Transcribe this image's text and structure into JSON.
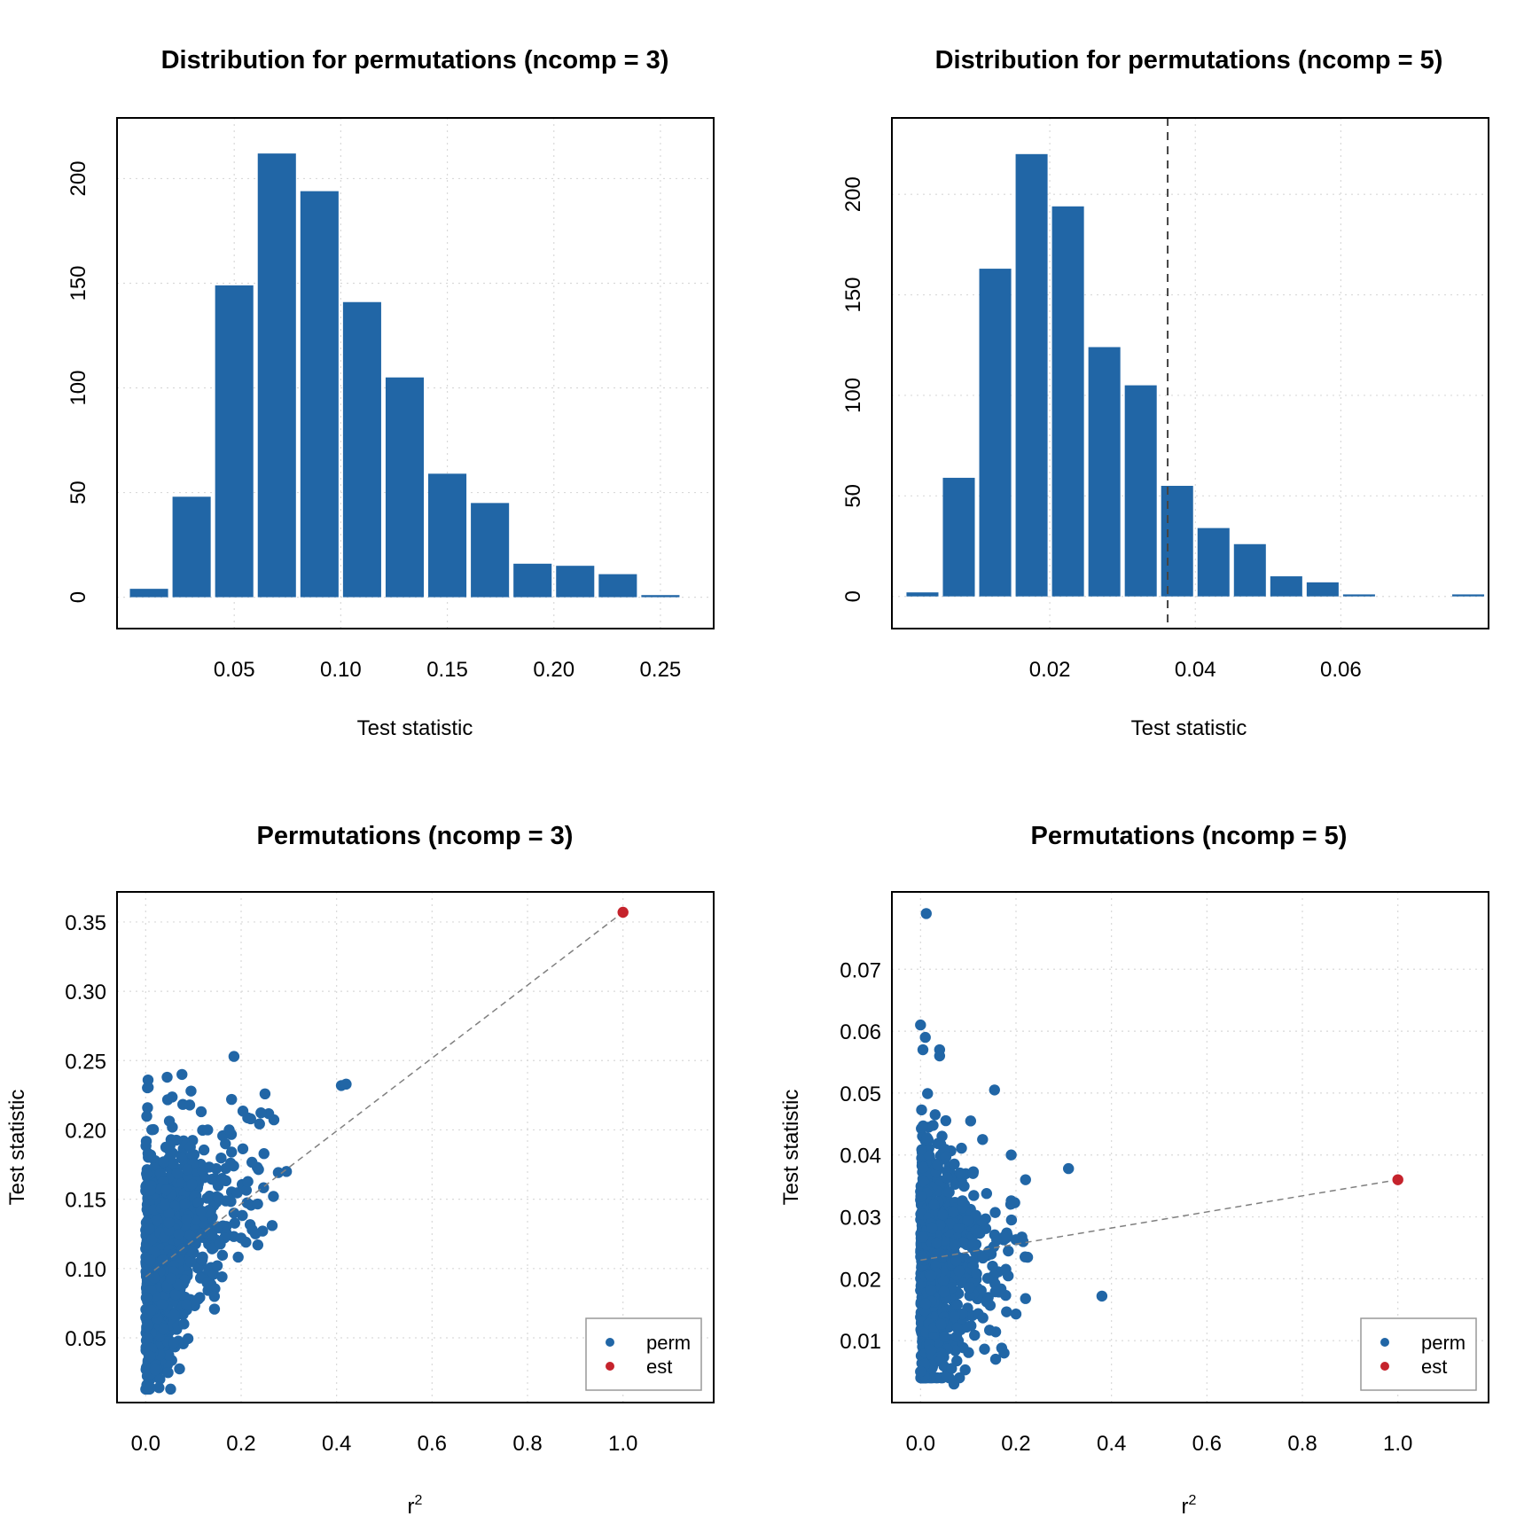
{
  "colors": {
    "perm": "#2166A6",
    "est": "#C5232C",
    "grid": "#d9d9d9",
    "ref_line": "#808080",
    "axis": "#000000"
  },
  "chart_data": [
    {
      "id": "hist3",
      "type": "bar",
      "title": "Distribution for permutations (ncomp = 3)",
      "xlabel": "Test statistic",
      "ylabel": "",
      "xlim": [
        -0.005,
        0.275
      ],
      "ylim": [
        -15,
        229
      ],
      "xticks": [
        0.05,
        0.1,
        0.15,
        0.2,
        0.25
      ],
      "xtick_labels": [
        "0.05",
        "0.10",
        "0.15",
        "0.20",
        "0.25"
      ],
      "yticks": [
        0,
        50,
        100,
        150,
        200
      ],
      "ytick_labels": [
        "0",
        "50",
        "100",
        "150",
        "200"
      ],
      "bin_width": 0.02,
      "bins": [
        {
          "center": 0.01,
          "count": 4
        },
        {
          "center": 0.03,
          "count": 48
        },
        {
          "center": 0.05,
          "count": 149
        },
        {
          "center": 0.07,
          "count": 212
        },
        {
          "center": 0.09,
          "count": 194
        },
        {
          "center": 0.11,
          "count": 141
        },
        {
          "center": 0.13,
          "count": 105
        },
        {
          "center": 0.15,
          "count": 59
        },
        {
          "center": 0.17,
          "count": 45
        },
        {
          "center": 0.19,
          "count": 16
        },
        {
          "center": 0.21,
          "count": 15
        },
        {
          "center": 0.23,
          "count": 11
        },
        {
          "center": 0.25,
          "count": 1
        }
      ],
      "vline": null,
      "grid": true
    },
    {
      "id": "hist5",
      "type": "bar",
      "title": "Distribution for permutations (ncomp = 5)",
      "xlabel": "Test statistic",
      "ylabel": "",
      "xlim": [
        -0.0017,
        0.0803
      ],
      "ylim": [
        -16,
        238
      ],
      "xticks": [
        0.02,
        0.04,
        0.06
      ],
      "xtick_labels": [
        "0.02",
        "0.04",
        "0.06"
      ],
      "yticks": [
        0,
        50,
        100,
        150,
        200
      ],
      "ytick_labels": [
        "0",
        "50",
        "100",
        "150",
        "200"
      ],
      "bin_width": 0.005,
      "bins": [
        {
          "center": 0.0025,
          "count": 2
        },
        {
          "center": 0.0075,
          "count": 59
        },
        {
          "center": 0.0125,
          "count": 163
        },
        {
          "center": 0.0175,
          "count": 220
        },
        {
          "center": 0.0225,
          "count": 194
        },
        {
          "center": 0.0275,
          "count": 124
        },
        {
          "center": 0.0325,
          "count": 105
        },
        {
          "center": 0.0375,
          "count": 55
        },
        {
          "center": 0.0425,
          "count": 34
        },
        {
          "center": 0.0475,
          "count": 26
        },
        {
          "center": 0.0525,
          "count": 10
        },
        {
          "center": 0.0575,
          "count": 7
        },
        {
          "center": 0.0625,
          "count": 1
        },
        {
          "center": 0.0675,
          "count": 0
        },
        {
          "center": 0.0725,
          "count": 0
        },
        {
          "center": 0.0775,
          "count": 1
        }
      ],
      "vline": 0.0362,
      "grid": true
    },
    {
      "id": "scatter3",
      "type": "scatter",
      "title": "Permutations (ncomp = 3)",
      "xlabel": "r",
      "xlabel_sup": "2",
      "ylabel": "Test statistic",
      "xlim": [
        -0.06,
        1.19
      ],
      "ylim": [
        0.0033,
        0.3717
      ],
      "xticks": [
        0.0,
        0.2,
        0.4,
        0.6,
        0.8,
        1.0
      ],
      "xtick_labels": [
        "0.0",
        "0.2",
        "0.4",
        "0.6",
        "0.8",
        "1.0"
      ],
      "yticks": [
        0.05,
        0.1,
        0.15,
        0.2,
        0.25,
        0.3,
        0.35
      ],
      "ytick_labels": [
        "0.05",
        "0.10",
        "0.15",
        "0.20",
        "0.25",
        "0.30",
        "0.35"
      ],
      "est": {
        "x": 1.0,
        "y": 0.357
      },
      "ref_line": {
        "x1": 0.0,
        "y1": 0.094,
        "x2": 1.0,
        "y2": 0.357
      },
      "hline": null,
      "legend": {
        "entries": [
          "perm",
          "est"
        ],
        "position": "bottom-right"
      },
      "cloud": {
        "n": 1000,
        "seed": 7,
        "y_mean": 0.095,
        "y_sd": 0.04,
        "y_min": 0.013,
        "y_max": 0.24,
        "x_scale": 0.055,
        "x_max": 0.3,
        "slope": 0.3
      },
      "points": [
        {
          "x": 0.41,
          "y": 0.232
        },
        {
          "x": 0.42,
          "y": 0.233
        },
        {
          "x": 0.185,
          "y": 0.253
        },
        {
          "x": 0.25,
          "y": 0.226
        },
        {
          "x": 0.22,
          "y": 0.208
        },
        {
          "x": 0.295,
          "y": 0.17
        },
        {
          "x": 0.265,
          "y": 0.131
        },
        {
          "x": 0.245,
          "y": 0.127
        },
        {
          "x": 0.23,
          "y": 0.125
        },
        {
          "x": 0.235,
          "y": 0.117
        },
        {
          "x": 0.21,
          "y": 0.119
        },
        {
          "x": 0.2,
          "y": 0.122
        },
        {
          "x": 0.18,
          "y": 0.222
        },
        {
          "x": 0.18,
          "y": 0.184
        },
        {
          "x": 0.185,
          "y": 0.14
        },
        {
          "x": 0.175,
          "y": 0.2
        },
        {
          "x": 0.13,
          "y": 0.2
        },
        {
          "x": 0.16,
          "y": 0.165
        },
        {
          "x": 0.16,
          "y": 0.094
        },
        {
          "x": 0.15,
          "y": 0.102
        },
        {
          "x": 0.095,
          "y": 0.228
        },
        {
          "x": 0.08,
          "y": 0.06
        },
        {
          "x": 0.045,
          "y": 0.238
        },
        {
          "x": 0.005,
          "y": 0.236
        },
        {
          "x": 0.004,
          "y": 0.216
        },
        {
          "x": 0.02,
          "y": 0.027
        },
        {
          "x": 0.01,
          "y": 0.014
        }
      ],
      "grid": true
    },
    {
      "id": "scatter5",
      "type": "scatter",
      "title": "Permutations (ncomp = 5)",
      "xlabel": "r",
      "xlabel_sup": "2",
      "ylabel": "Test statistic",
      "xlim": [
        -0.06,
        1.19
      ],
      "ylim": [
        0.0,
        0.0825
      ],
      "xticks": [
        0.0,
        0.2,
        0.4,
        0.6,
        0.8,
        1.0
      ],
      "xtick_labels": [
        "0.0",
        "0.2",
        "0.4",
        "0.6",
        "0.8",
        "1.0"
      ],
      "yticks": [
        0.01,
        0.02,
        0.03,
        0.04,
        0.05,
        0.06,
        0.07
      ],
      "ytick_labels": [
        "0.01",
        "0.02",
        "0.03",
        "0.04",
        "0.05",
        "0.06",
        "0.07"
      ],
      "est": {
        "x": 1.0,
        "y": 0.036
      },
      "ref_line": {
        "x1": 0.0,
        "y1": 0.023,
        "x2": 1.0,
        "y2": 0.036
      },
      "hline": 0.0,
      "legend": {
        "entries": [
          "perm",
          "est"
        ],
        "position": "bottom-right"
      },
      "cloud": {
        "n": 1000,
        "seed": 13,
        "y_mean": 0.023,
        "y_sd": 0.0095,
        "y_min": 0.004,
        "y_max": 0.05,
        "x_scale": 0.045,
        "x_max": 0.23,
        "slope": 0.0
      },
      "points": [
        {
          "x": 0.012,
          "y": 0.079
        },
        {
          "x": 0.0,
          "y": 0.061
        },
        {
          "x": 0.01,
          "y": 0.059
        },
        {
          "x": 0.04,
          "y": 0.057
        },
        {
          "x": 0.005,
          "y": 0.057
        },
        {
          "x": 0.04,
          "y": 0.056
        },
        {
          "x": 0.155,
          "y": 0.0505
        },
        {
          "x": 0.31,
          "y": 0.0378
        },
        {
          "x": 0.38,
          "y": 0.0172
        },
        {
          "x": 0.22,
          "y": 0.036
        },
        {
          "x": 0.19,
          "y": 0.04
        },
        {
          "x": 0.19,
          "y": 0.0326
        },
        {
          "x": 0.2,
          "y": 0.0263
        },
        {
          "x": 0.215,
          "y": 0.026
        },
        {
          "x": 0.22,
          "y": 0.0168
        },
        {
          "x": 0.2,
          "y": 0.0143
        },
        {
          "x": 0.17,
          "y": 0.0088
        },
        {
          "x": 0.175,
          "y": 0.008
        },
        {
          "x": 0.07,
          "y": 0.003
        },
        {
          "x": 0.065,
          "y": 0.0055
        },
        {
          "x": 0.0,
          "y": 0.005
        },
        {
          "x": 0.105,
          "y": 0.0455
        },
        {
          "x": 0.13,
          "y": 0.0425
        },
        {
          "x": 0.11,
          "y": 0.037
        }
      ],
      "grid": true
    }
  ]
}
